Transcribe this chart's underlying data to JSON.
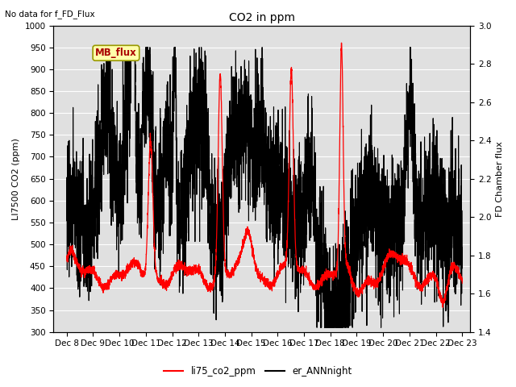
{
  "title": "CO2 in ppm",
  "top_left_text": "No data for f_FD_Flux",
  "ylabel_left": "LI7500 CO2 (ppm)",
  "ylabel_right": "FD Chamber flux",
  "legend_labels": [
    "li75_co2_ppm",
    "er_ANNnight"
  ],
  "xlim_days": [
    7.5,
    23.3
  ],
  "ylim_left": [
    300,
    1000
  ],
  "ylim_right": [
    1.4,
    3.0
  ],
  "yticks_left": [
    300,
    350,
    400,
    450,
    500,
    550,
    600,
    650,
    700,
    750,
    800,
    850,
    900,
    950,
    1000
  ],
  "yticks_right": [
    1.4,
    1.6,
    1.8,
    2.0,
    2.2,
    2.4,
    2.6,
    2.8,
    3.0
  ],
  "xtick_labels": [
    "Dec 8",
    "Dec 9",
    "Dec 10",
    "Dec 11",
    "Dec 12",
    "Dec 13",
    "Dec 14",
    "Dec 15",
    "Dec 16",
    "Dec 17",
    "Dec 18",
    "Dec 19",
    "Dec 20",
    "Dec 21",
    "Dec 22",
    "Dec 23"
  ],
  "xtick_positions": [
    8,
    9,
    10,
    11,
    12,
    13,
    14,
    15,
    16,
    17,
    18,
    19,
    20,
    21,
    22,
    23
  ],
  "plot_bg_color": "#e0e0e0",
  "grid_color": "white",
  "mb_flux_box_color": "#ffffaa",
  "mb_flux_text_color": "#aa0000",
  "mb_flux_border_color": "#999900",
  "title_fontsize": 10,
  "axis_fontsize": 8,
  "tick_fontsize": 7.5,
  "linewidth_red": 0.9,
  "linewidth_black": 0.8
}
